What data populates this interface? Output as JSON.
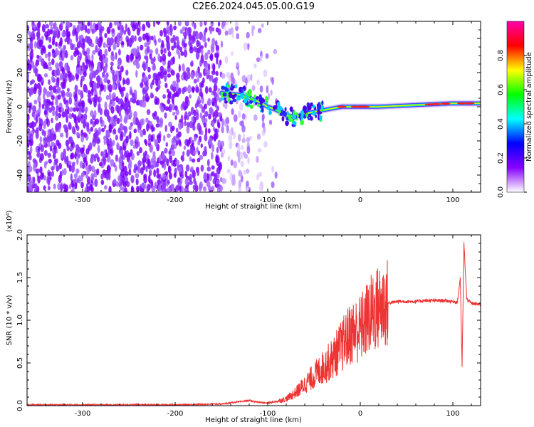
{
  "title": "C2E6.2024.045.05.00.G19",
  "chart_data": [
    {
      "type": "heatmap",
      "xlabel": "Height of straight line (km)",
      "ylabel": "Frequency (Hz)",
      "xlim": [
        -360,
        130
      ],
      "ylim": [
        -50,
        50
      ],
      "xticks": [
        -300,
        -200,
        -100,
        0,
        100
      ],
      "yticks": [
        -40,
        -20,
        0,
        20,
        40
      ],
      "colorbar": {
        "label": "Normalized spectral amplitude",
        "range": [
          0.0,
          1.0
        ],
        "ticks": [
          "0.0",
          "0.2",
          "0.4",
          "0.6",
          "0.8"
        ],
        "colors": [
          "#ffffff",
          "#8800ff",
          "#0000ff",
          "#00ffff",
          "#00ff00",
          "#ffff00",
          "#ff0000",
          "#ff00aa"
        ]
      },
      "ridge": {
        "x": [
          -150,
          -130,
          -110,
          -100,
          -90,
          -80,
          -70,
          -60,
          -50,
          -40,
          -30,
          -20,
          -10,
          0,
          20,
          40,
          60,
          80,
          100,
          120,
          130
        ],
        "y": [
          8,
          7,
          3,
          0,
          -2,
          -5,
          -6,
          -4,
          -3,
          -2,
          -1,
          0,
          0,
          0,
          0,
          0.5,
          1,
          1.5,
          2,
          2,
          2
        ]
      },
      "noise_region_x": [
        -360,
        -90
      ]
    },
    {
      "type": "line",
      "xlabel": "Height of straight line (km)",
      "ylabel": "SNR (10 * v/v)",
      "multiplier": "(x10⁴)",
      "xlim": [
        -360,
        130
      ],
      "ylim": [
        0.0,
        2.0
      ],
      "xticks": [
        -300,
        -200,
        -100,
        0,
        100
      ],
      "yticks": [
        "0.0",
        "0.5",
        "1.0",
        "1.5",
        "2.0"
      ],
      "color": "#ee3333",
      "series": [
        {
          "x": [
            -360,
            -300,
            -200,
            -150,
            -120,
            -110,
            -100,
            -90,
            -80,
            -70,
            -60,
            -50,
            -40,
            -30,
            -20,
            -10,
            0,
            10,
            20,
            30,
            40,
            50,
            60,
            70,
            80,
            90,
            100,
            105,
            108,
            110,
            112,
            115,
            120,
            130
          ],
          "y": [
            0.01,
            0.01,
            0.01,
            0.02,
            0.06,
            0.04,
            0.03,
            0.05,
            0.08,
            0.15,
            0.25,
            0.35,
            0.45,
            0.55,
            0.7,
            0.85,
            0.9,
            1.05,
            1.15,
            1.2,
            1.22,
            1.22,
            1.22,
            1.23,
            1.23,
            1.23,
            1.22,
            1.21,
            1.5,
            0.45,
            1.9,
            1.25,
            1.2,
            1.18
          ]
        }
      ]
    }
  ]
}
